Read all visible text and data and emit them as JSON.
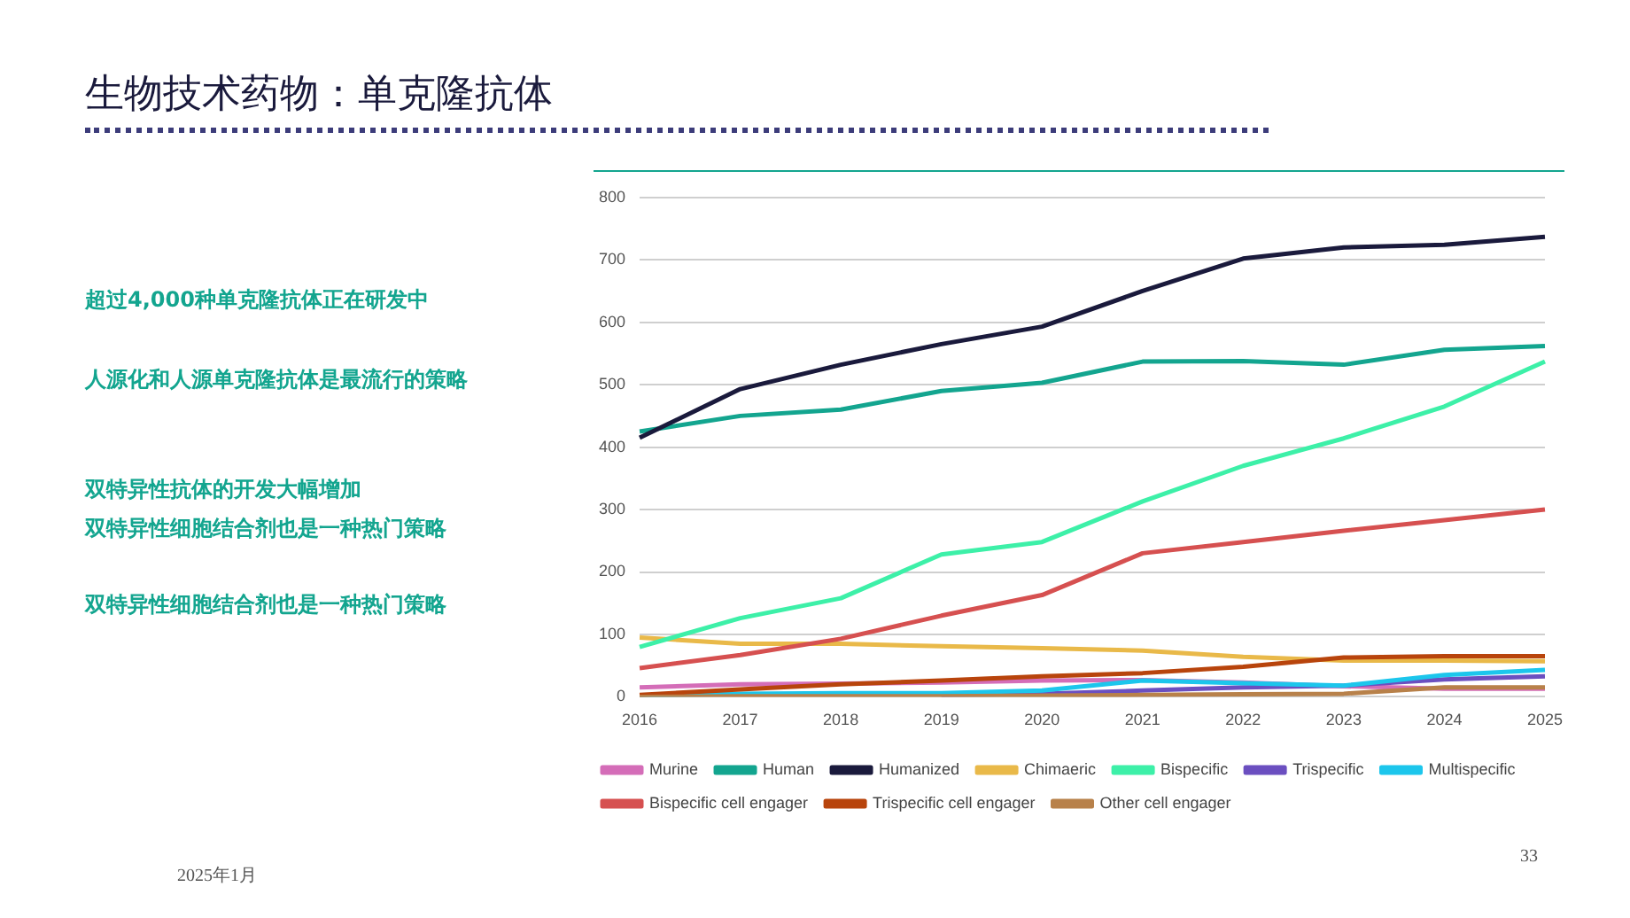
{
  "chart_data": {
    "type": "line",
    "title": "生物技术药物：单克隆抗体",
    "annotations": [
      "超过4,000种单克隆抗体正在研发中",
      "人源化和人源单克隆抗体是最流行的策略",
      "双特异性抗体的开发大幅增加",
      "双特异性细胞结合剂也是一种热门策略",
      "双特异性细胞结合剂也是一种热门策略",
      "2025年1月",
      "33"
    ],
    "categories": [
      "2016",
      "2017",
      "2018",
      "2019",
      "2020",
      "2021",
      "2022",
      "2023",
      "2024",
      "2025"
    ],
    "series": [
      {
        "name": "Murine",
        "color": "#d46db8",
        "values": [
          15,
          20,
          21,
          23,
          26,
          27,
          23,
          17,
          13,
          13
        ]
      },
      {
        "name": "Human",
        "color": "#13a58f",
        "values": [
          425,
          450,
          460,
          490,
          503,
          537,
          538,
          532,
          556,
          562
        ]
      },
      {
        "name": "Humanized",
        "color": "#1a1a3c",
        "values": [
          415,
          493,
          532,
          565,
          593,
          650,
          702,
          720,
          724,
          737
        ]
      },
      {
        "name": "Chimaeric",
        "color": "#e9b949",
        "values": [
          95,
          85,
          85,
          81,
          78,
          74,
          64,
          58,
          58,
          57
        ]
      },
      {
        "name": "Bispecific",
        "color": "#3df0a8",
        "values": [
          80,
          126,
          158,
          228,
          248,
          313,
          370,
          414,
          465,
          537
        ]
      },
      {
        "name": "Trispecific",
        "color": "#6b4fc0",
        "values": [
          null,
          null,
          null,
          3,
          5,
          10,
          15,
          18,
          28,
          33
        ]
      },
      {
        "name": "Multispecific",
        "color": "#1cc6ec",
        "values": [
          2,
          5,
          6,
          6,
          10,
          26,
          22,
          18,
          35,
          43
        ]
      },
      {
        "name": "Bispecific cell engager",
        "color": "#d65050",
        "values": [
          46,
          67,
          93,
          130,
          163,
          230,
          248,
          266,
          283,
          300
        ]
      },
      {
        "name": "Trispecific cell engager",
        "color": "#b8440c",
        "values": [
          3,
          12,
          20,
          26,
          33,
          38,
          48,
          63,
          65,
          65
        ]
      },
      {
        "name": "Other cell engager",
        "color": "#b8814a",
        "values": [
          0,
          1,
          1,
          1,
          2,
          3,
          4,
          5,
          15,
          15
        ]
      }
    ],
    "ylim": [
      0,
      800
    ],
    "yticks": [
      0,
      100,
      200,
      300,
      400,
      500,
      600,
      700,
      800
    ],
    "grid": "y",
    "legend": "bottom",
    "marker": "none",
    "line_style": "solid"
  }
}
